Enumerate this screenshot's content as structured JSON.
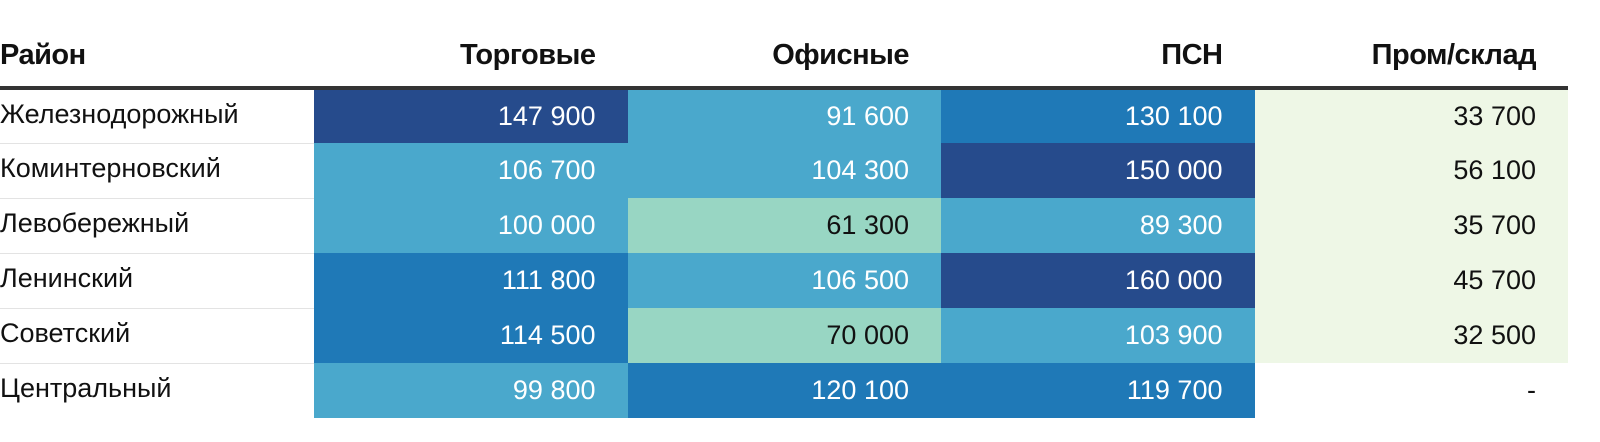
{
  "chart_data": {
    "type": "table",
    "columns": [
      "Район",
      "Торговые",
      "Офисные",
      "ПСН",
      "Пром/склад"
    ],
    "rows": [
      {
        "name": "Железнодорожный",
        "values": [
          "147 900",
          "91 600",
          "130 100",
          "33 700"
        ]
      },
      {
        "name": "Коминтерновский",
        "values": [
          "106 700",
          "104 300",
          "150 000",
          "56 100"
        ]
      },
      {
        "name": "Левобережный",
        "values": [
          "100 000",
          "61 300",
          "89 300",
          "35 700"
        ]
      },
      {
        "name": "Ленинский",
        "values": [
          "111 800",
          "106 500",
          "160 000",
          "45 700"
        ]
      },
      {
        "name": "Советский",
        "values": [
          "114 500",
          "70 000",
          "103 900",
          "32 500"
        ]
      },
      {
        "name": "Центральный",
        "values": [
          "99 800",
          "120 100",
          "119 700",
          "-"
        ]
      }
    ]
  },
  "colors": {
    "darkest": "#264b8c",
    "dark": "#1f79b7",
    "mid": "#4aa8cc",
    "light": "#98d6c3",
    "lightest": "#eef7e6",
    "none": "#ffffff"
  },
  "cell_colors": [
    [
      "darkest",
      "mid",
      "dark",
      "lightest"
    ],
    [
      "mid",
      "mid",
      "darkest",
      "lightest"
    ],
    [
      "mid",
      "light",
      "mid",
      "lightest"
    ],
    [
      "dark",
      "mid",
      "darkest",
      "lightest"
    ],
    [
      "dark",
      "light",
      "mid",
      "lightest"
    ],
    [
      "mid",
      "dark",
      "dark",
      "none"
    ]
  ]
}
